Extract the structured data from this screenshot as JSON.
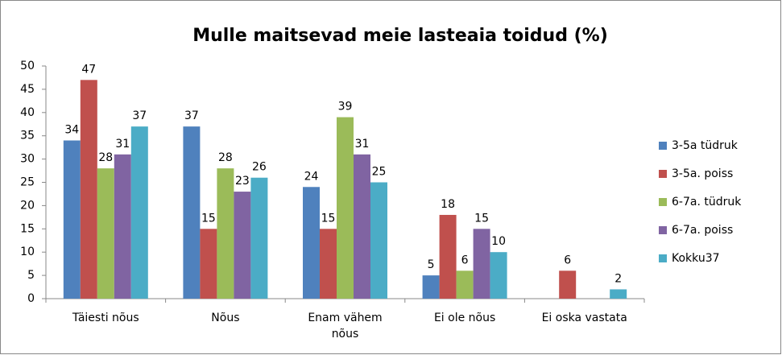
{
  "chart_data": {
    "type": "bar",
    "title": "Mulle maitsevad meie lasteaia toidud (%)",
    "categories": [
      "Täiesti nõus",
      "Nõus",
      "Enam vähem nõus",
      "Ei ole nõus",
      "Ei oska vastata"
    ],
    "series": [
      {
        "name": "3-5a tüdruk",
        "color": "#4f81bd",
        "values": [
          34,
          37,
          24,
          5,
          null
        ]
      },
      {
        "name": "3-5a. poiss",
        "color": "#c0504d",
        "values": [
          47,
          15,
          15,
          18,
          6
        ]
      },
      {
        "name": "6-7a. tüdruk",
        "color": "#9bbb59",
        "values": [
          28,
          28,
          39,
          6,
          null
        ]
      },
      {
        "name": "6-7a. poiss",
        "color": "#8064a2",
        "values": [
          31,
          23,
          31,
          15,
          null
        ]
      },
      {
        "name": "Kokku37",
        "color": "#4bacc6",
        "values": [
          37,
          26,
          25,
          10,
          2
        ]
      }
    ],
    "ylim": [
      0,
      50
    ],
    "yticks": [
      0,
      5,
      10,
      15,
      20,
      25,
      30,
      35,
      40,
      45,
      50
    ],
    "grid": false,
    "legend": "right"
  }
}
